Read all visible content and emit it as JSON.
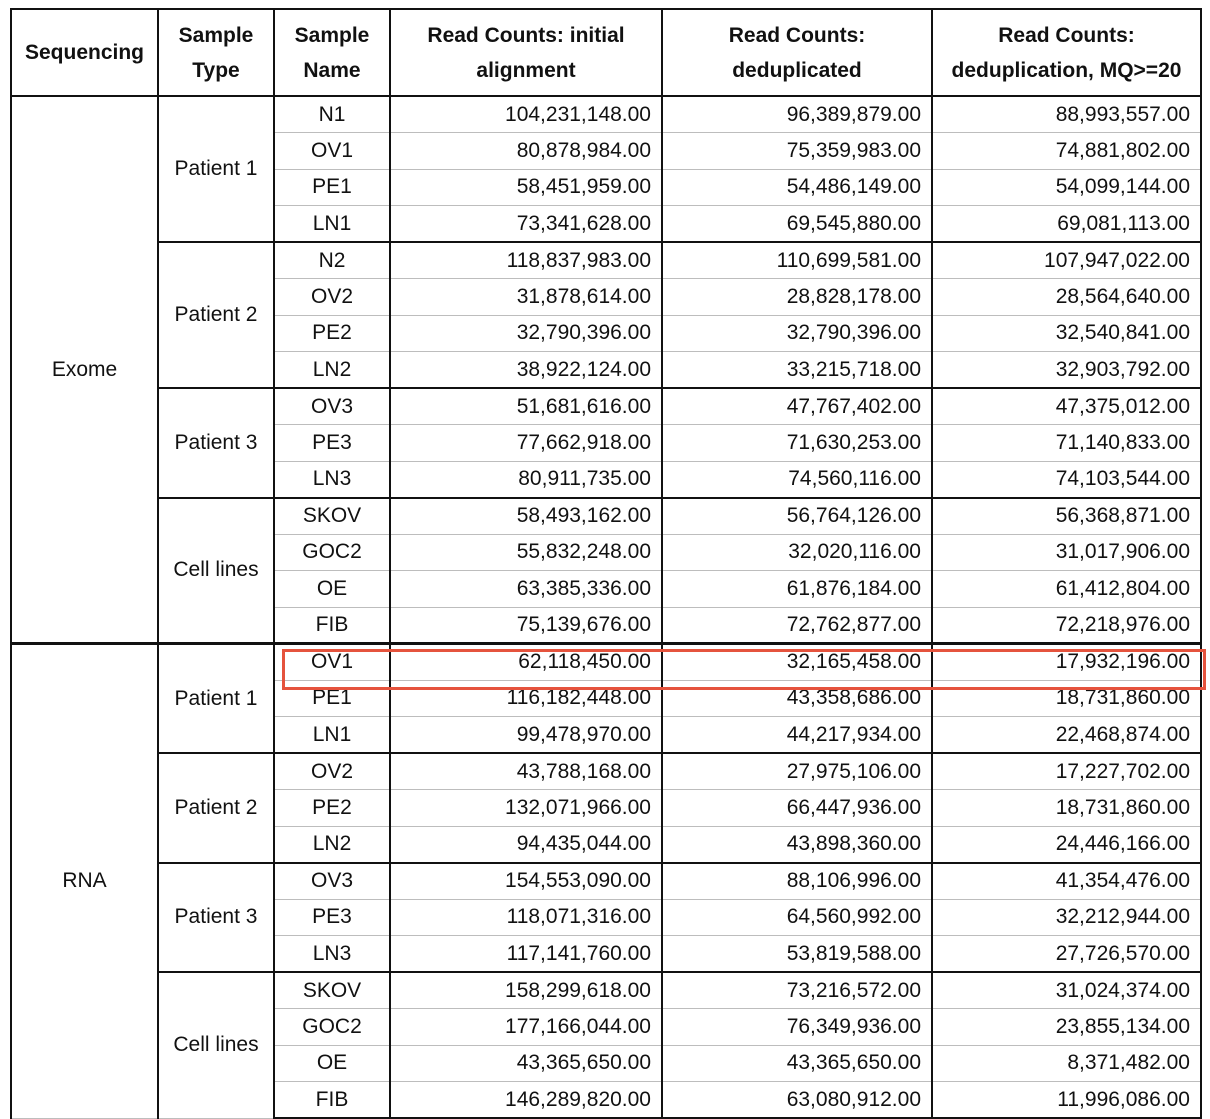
{
  "table": {
    "headers": {
      "sequencing": "Sequencing",
      "sample_type": [
        "Sample",
        "Type"
      ],
      "sample_name": [
        "Sample",
        "Name"
      ],
      "initial": [
        "Read Counts: initial",
        "alignment"
      ],
      "dedup": [
        "Read Counts:",
        "deduplicated"
      ],
      "dedup_mq": [
        "Read Counts:",
        "deduplication, MQ>=20"
      ]
    },
    "sections": [
      {
        "sequencing": "Exome",
        "groups": [
          {
            "type": "Patient 1",
            "rows": [
              [
                "N1",
                "104,231,148.00",
                "96,389,879.00",
                "88,993,557.00"
              ],
              [
                "OV1",
                "80,878,984.00",
                "75,359,983.00",
                "74,881,802.00"
              ],
              [
                "PE1",
                "58,451,959.00",
                "54,486,149.00",
                "54,099,144.00"
              ],
              [
                "LN1",
                "73,341,628.00",
                "69,545,880.00",
                "69,081,113.00"
              ]
            ]
          },
          {
            "type": "Patient 2",
            "rows": [
              [
                "N2",
                "118,837,983.00",
                "110,699,581.00",
                "107,947,022.00"
              ],
              [
                "OV2",
                "31,878,614.00",
                "28,828,178.00",
                "28,564,640.00"
              ],
              [
                "PE2",
                "32,790,396.00",
                "32,790,396.00",
                "32,540,841.00"
              ],
              [
                "LN2",
                "38,922,124.00",
                "33,215,718.00",
                "32,903,792.00"
              ]
            ]
          },
          {
            "type": "Patient 3",
            "rows": [
              [
                "OV3",
                "51,681,616.00",
                "47,767,402.00",
                "47,375,012.00"
              ],
              [
                "PE3",
                "77,662,918.00",
                "71,630,253.00",
                "71,140,833.00"
              ],
              [
                "LN3",
                "80,911,735.00",
                "74,560,116.00",
                "74,103,544.00"
              ]
            ]
          },
          {
            "type": "Cell lines",
            "rows": [
              [
                "SKOV",
                "58,493,162.00",
                "56,764,126.00",
                "56,368,871.00"
              ],
              [
                "GOC2",
                "55,832,248.00",
                "32,020,116.00",
                "31,017,906.00"
              ],
              [
                "OE",
                "63,385,336.00",
                "61,876,184.00",
                "61,412,804.00"
              ],
              [
                "FIB",
                "75,139,676.00",
                "72,762,877.00",
                "72,218,976.00"
              ]
            ]
          }
        ]
      },
      {
        "sequencing": "RNA",
        "groups": [
          {
            "type": "Patient 1",
            "rows": [
              [
                "OV1",
                "62,118,450.00",
                "32,165,458.00",
                "17,932,196.00"
              ],
              [
                "PE1",
                "116,182,448.00",
                "43,358,686.00",
                "18,731,860.00"
              ],
              [
                "LN1",
                "99,478,970.00",
                "44,217,934.00",
                "22,468,874.00"
              ]
            ]
          },
          {
            "type": "Patient 2",
            "rows": [
              [
                "OV2",
                "43,788,168.00",
                "27,975,106.00",
                "17,227,702.00"
              ],
              [
                "PE2",
                "132,071,966.00",
                "66,447,936.00",
                "18,731,860.00"
              ],
              [
                "LN2",
                "94,435,044.00",
                "43,898,360.00",
                "24,446,166.00"
              ]
            ]
          },
          {
            "type": "Patient 3",
            "rows": [
              [
                "OV3",
                "154,553,090.00",
                "88,106,996.00",
                "41,354,476.00"
              ],
              [
                "PE3",
                "118,071,316.00",
                "64,560,992.00",
                "32,212,944.00"
              ],
              [
                "LN3",
                "117,141,760.00",
                "53,819,588.00",
                "27,726,570.00"
              ]
            ]
          },
          {
            "type": "Cell lines",
            "rows": [
              [
                "SKOV",
                "158,299,618.00",
                "73,216,572.00",
                "31,024,374.00"
              ],
              [
                "GOC2",
                "177,166,044.00",
                "76,349,936.00",
                "23,855,134.00"
              ],
              [
                "OE",
                "43,365,650.00",
                "43,365,650.00",
                "8,371,482.00"
              ],
              [
                "FIB",
                "146,289,820.00",
                "63,080,912.00",
                "11,996,086.00"
              ]
            ]
          }
        ]
      }
    ],
    "highlight": {
      "section": "RNA",
      "sample": "OV1",
      "color": "#e5533d"
    }
  }
}
